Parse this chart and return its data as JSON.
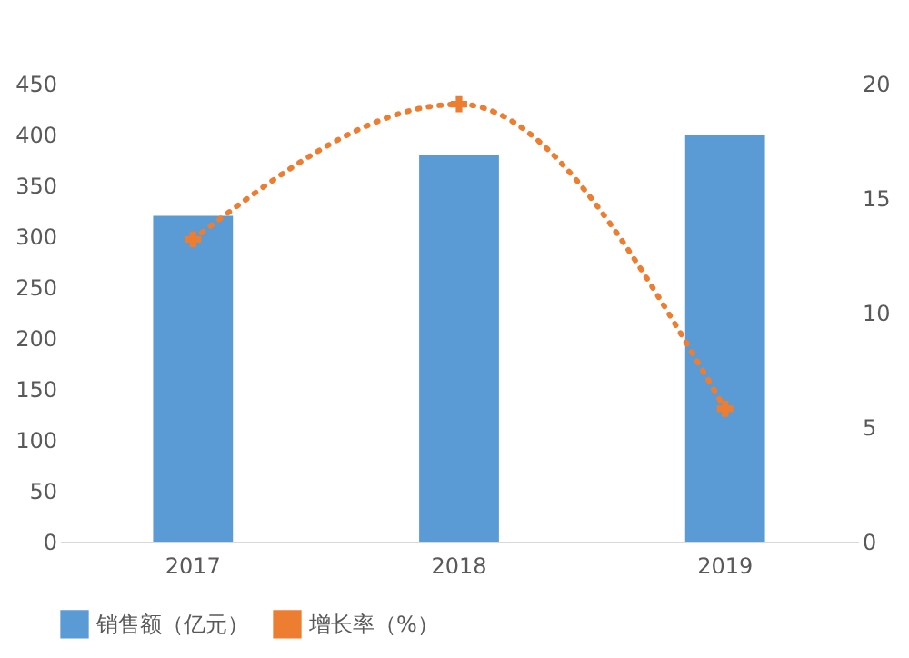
{
  "chart_data": {
    "type": "bar",
    "categories": [
      "2017",
      "2018",
      "2019"
    ],
    "series": [
      {
        "name": "销售额（亿元）",
        "color": "#5b9bd5",
        "values": [
          320,
          380,
          400
        ]
      },
      {
        "name": "增长率（%）",
        "type": "line",
        "axis": "y2",
        "color": "#ed7d31",
        "values": [
          13.2,
          19.1,
          5.8
        ],
        "marker": "cross",
        "line_style": "dotted"
      }
    ],
    "ylim": [
      0,
      450
    ],
    "yticks": [
      0,
      50,
      100,
      150,
      200,
      250,
      300,
      350,
      400,
      450
    ],
    "y2lim": [
      0,
      20
    ],
    "y2ticks": [
      0,
      5,
      10,
      15,
      20
    ],
    "legend": "bottom",
    "grid": false
  }
}
